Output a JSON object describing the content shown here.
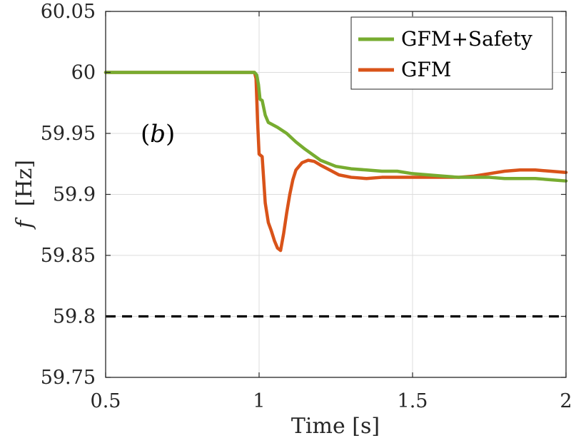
{
  "chart_data": {
    "type": "line",
    "title": "",
    "xlabel": "Time [s]",
    "ylabel_symbol": "f",
    "ylabel_unit": "[Hz]",
    "xlim": [
      0.5,
      2
    ],
    "ylim": [
      59.75,
      60.05
    ],
    "xticks": [
      0.5,
      1,
      1.5,
      2
    ],
    "xtick_labels": [
      "0.5",
      "1",
      "1.5",
      "2"
    ],
    "yticks": [
      59.75,
      59.8,
      59.85,
      59.9,
      59.95,
      60,
      60.05
    ],
    "ytick_labels": [
      "59.75",
      "59.8",
      "59.85",
      "59.9",
      "59.95",
      "60",
      "60.05"
    ],
    "grid": true,
    "legend_position": "top-right",
    "annotation": {
      "paren_open": "(",
      "letter": "b",
      "paren_close": ")",
      "x": 0.67,
      "y": 59.95
    },
    "series": [
      {
        "name": "GFM+Safety",
        "color": "#77ac30",
        "x": [
          0.5,
          0.985,
          0.992,
          0.998,
          1.003,
          1.01,
          1.02,
          1.03,
          1.06,
          1.09,
          1.12,
          1.15,
          1.2,
          1.25,
          1.3,
          1.35,
          1.4,
          1.45,
          1.5,
          1.55,
          1.6,
          1.65,
          1.7,
          1.75,
          1.8,
          1.85,
          1.9,
          1.95,
          2.0
        ],
        "y": [
          60.0,
          60.0,
          59.998,
          59.99,
          59.978,
          59.977,
          59.965,
          59.959,
          59.955,
          59.95,
          59.943,
          59.937,
          59.928,
          59.923,
          59.921,
          59.92,
          59.919,
          59.919,
          59.917,
          59.916,
          59.915,
          59.914,
          59.914,
          59.914,
          59.913,
          59.913,
          59.913,
          59.912,
          59.911
        ]
      },
      {
        "name": "GFM",
        "color": "#d95319",
        "x": [
          0.5,
          0.985,
          0.99,
          0.995,
          1.0,
          1.01,
          1.02,
          1.03,
          1.04,
          1.05,
          1.06,
          1.07,
          1.08,
          1.09,
          1.1,
          1.11,
          1.12,
          1.14,
          1.16,
          1.18,
          1.2,
          1.23,
          1.26,
          1.3,
          1.35,
          1.4,
          1.5,
          1.6,
          1.65,
          1.7,
          1.75,
          1.8,
          1.85,
          1.9,
          1.95,
          2.0
        ],
        "y": [
          60.0,
          60.0,
          59.995,
          59.96,
          59.933,
          59.931,
          59.893,
          59.877,
          59.87,
          59.862,
          59.856,
          59.854,
          59.868,
          59.885,
          59.9,
          59.912,
          59.92,
          59.926,
          59.928,
          59.927,
          59.924,
          59.92,
          59.916,
          59.914,
          59.913,
          59.914,
          59.914,
          59.914,
          59.914,
          59.915,
          59.917,
          59.919,
          59.92,
          59.92,
          59.919,
          59.918
        ]
      }
    ],
    "reference_line": {
      "y": 59.8,
      "color": "#000000",
      "style": "dashed"
    }
  }
}
